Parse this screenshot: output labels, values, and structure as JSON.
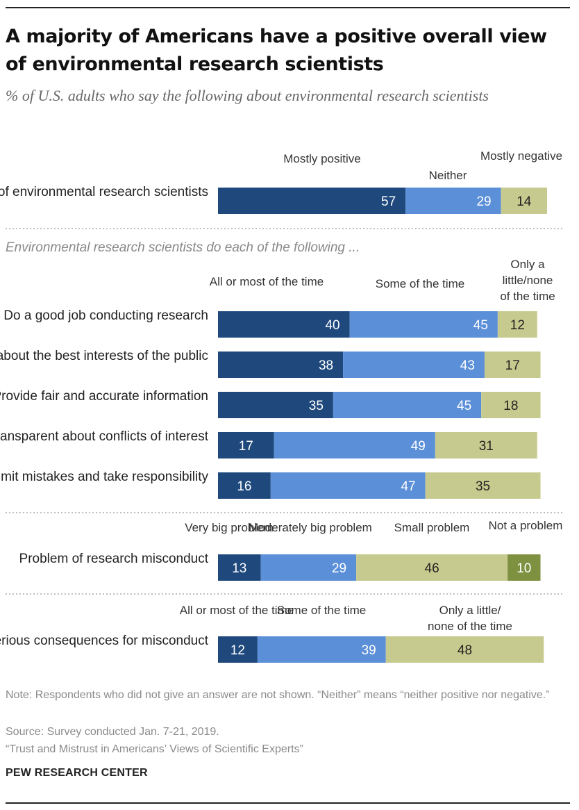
{
  "title": "A majority of Americans have a positive overall view of environmental research scientists",
  "subtitle": "% of U.S. adults who say the following about environmental research scientists",
  "section_label": "Environmental research scientists do each of the following ...",
  "colors": {
    "dark_blue": "#1f497d",
    "light_blue": "#5b8fd8",
    "tan": "#c7ca8e",
    "olive": "#7e9140",
    "divider": "#aaaaaa"
  },
  "chart_data": [
    {
      "type": "bar",
      "orientation": "horizontal-stacked",
      "categories": [
        "Overall view of environmental research scientists"
      ],
      "series": [
        {
          "name": "Mostly positive",
          "values": [
            57
          ]
        },
        {
          "name": "Neither",
          "values": [
            29
          ]
        },
        {
          "name": "Mostly negative",
          "values": [
            14
          ]
        }
      ]
    },
    {
      "type": "bar",
      "orientation": "horizontal-stacked",
      "categories": [
        "Do a good job conducting research",
        "Care about the best interests of the public",
        "Provide fair and accurate information",
        "Are transparent about conflicts of interest",
        "Admit mistakes and take responsibility"
      ],
      "series": [
        {
          "name": "All or most of the time",
          "values": [
            40,
            38,
            35,
            17,
            16
          ]
        },
        {
          "name": "Some of the time",
          "values": [
            45,
            43,
            45,
            49,
            47
          ]
        },
        {
          "name": "Only a little/none of the time",
          "values": [
            12,
            17,
            18,
            31,
            35
          ]
        }
      ]
    },
    {
      "type": "bar",
      "orientation": "horizontal-stacked",
      "categories": [
        "Problem of research misconduct"
      ],
      "series": [
        {
          "name": "Very big problem",
          "values": [
            13
          ]
        },
        {
          "name": "Moderately big problem",
          "values": [
            29
          ]
        },
        {
          "name": "Small problem",
          "values": [
            46
          ]
        },
        {
          "name": "Not a problem",
          "values": [
            10
          ]
        }
      ]
    },
    {
      "type": "bar",
      "orientation": "horizontal-stacked",
      "categories": [
        "Face serious consequences for misconduct"
      ],
      "series": [
        {
          "name": "All or most of the time",
          "values": [
            12
          ]
        },
        {
          "name": "Some of the time",
          "values": [
            39
          ]
        },
        {
          "name": "Only a little/none of the time",
          "values": [
            48
          ]
        }
      ]
    }
  ],
  "notes": {
    "note": "Note: Respondents who did not give an answer are not shown. “Neither” means “neither positive nor negative.”",
    "source": "Source: Survey conducted Jan. 7-21, 2019.",
    "report": "“Trust and Mistrust in Americans’ Views of Scientific Experts”"
  },
  "brand": "PEW RESEARCH CENTER"
}
